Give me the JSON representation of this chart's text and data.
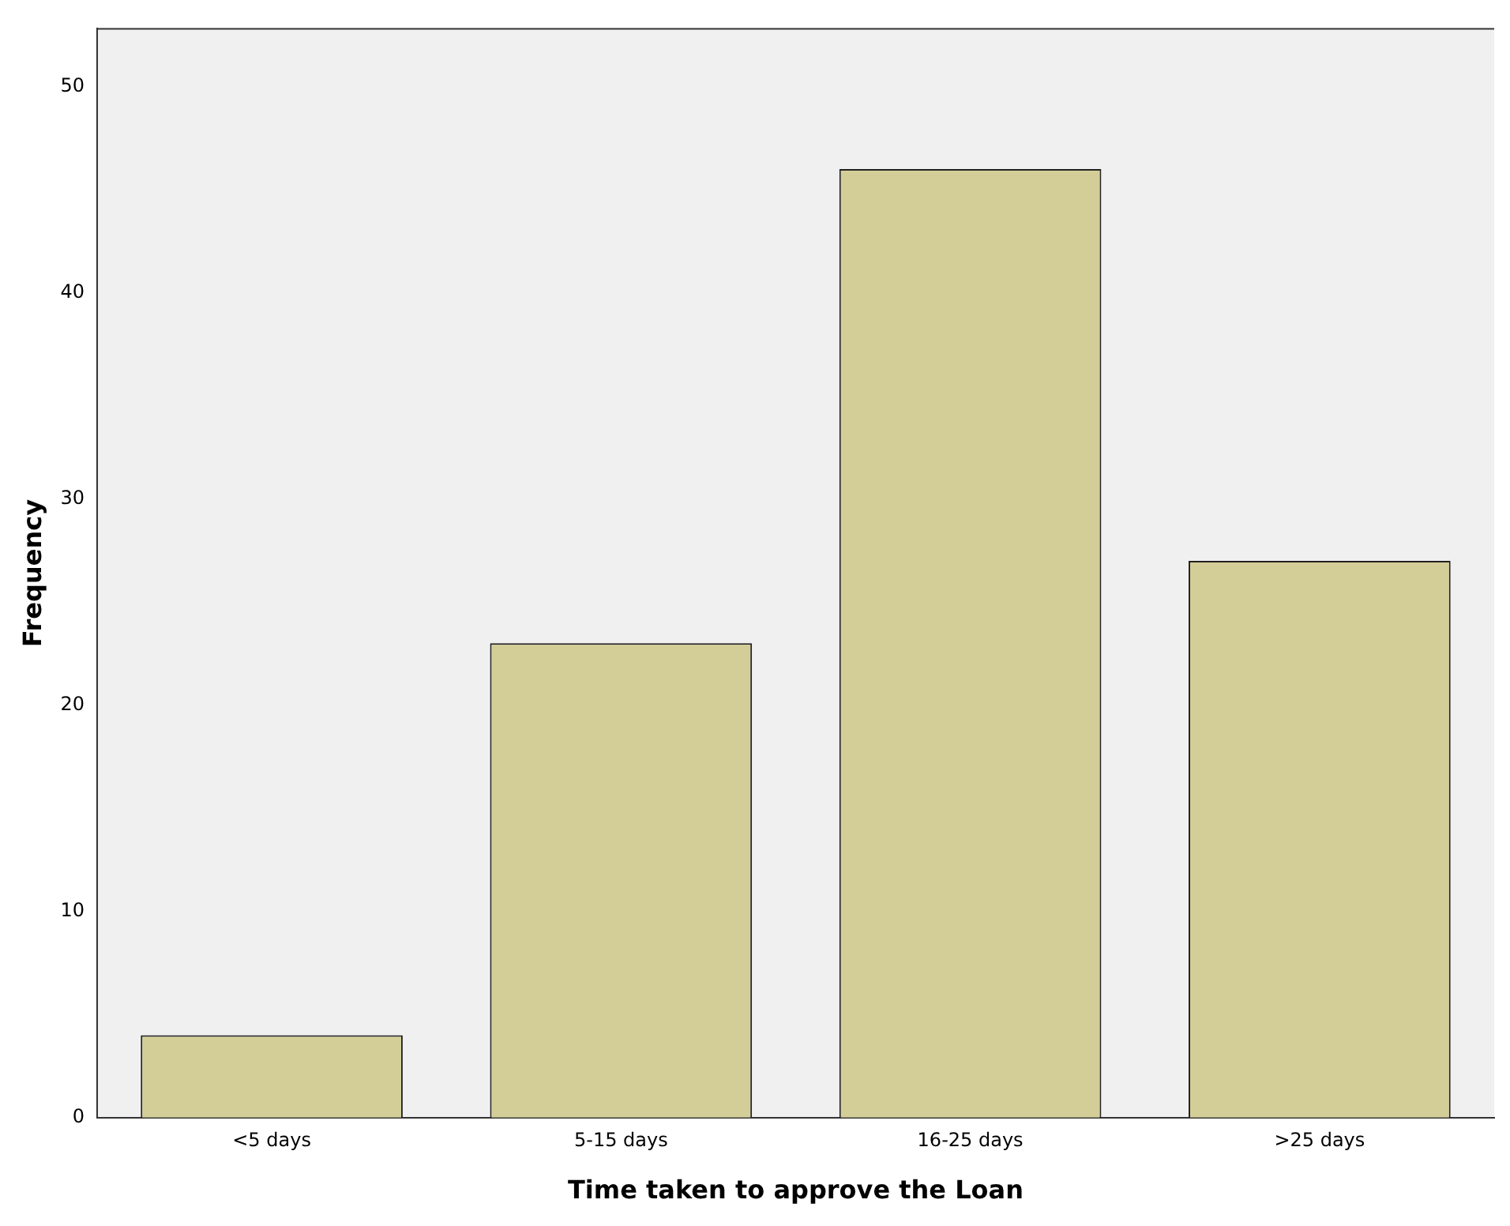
{
  "chart_data": {
    "type": "bar",
    "xlabel": "Time taken to approve the Loan",
    "ylabel": "Frequency",
    "categories": [
      "<5 days",
      "5-15 days",
      "16-25 days",
      ">25 days"
    ],
    "values": [
      4,
      23,
      46,
      27
    ],
    "color": "#d3ce97",
    "ylim": [
      0,
      52.8
    ],
    "yticks": [
      0,
      10,
      20,
      30,
      40,
      50
    ],
    "grid": false,
    "legend": false
  }
}
